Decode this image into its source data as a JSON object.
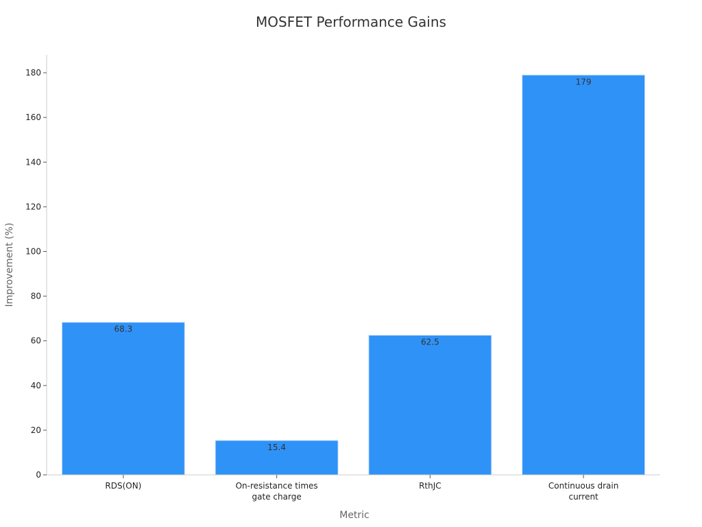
{
  "chart_data": {
    "type": "bar",
    "title": "MOSFET Performance Gains",
    "xlabel": "Metric",
    "ylabel": "Improvement (%)",
    "categories": [
      [
        "RDS(ON)"
      ],
      [
        "On-resistance times",
        "gate charge"
      ],
      [
        "RthJC"
      ],
      [
        "Continuous drain",
        "current"
      ]
    ],
    "values": [
      68.3,
      15.4,
      62.5,
      179
    ],
    "value_labels": [
      "68.3",
      "15.4",
      "62.5",
      "179"
    ],
    "ylim": [
      0,
      188
    ],
    "yticks": [
      0,
      20,
      40,
      60,
      80,
      100,
      120,
      140,
      160,
      180
    ],
    "grid": false,
    "colors": {
      "bar": "#2f92f7",
      "bar_edge": "#cfe3fb",
      "axis": "#cccccc"
    }
  }
}
